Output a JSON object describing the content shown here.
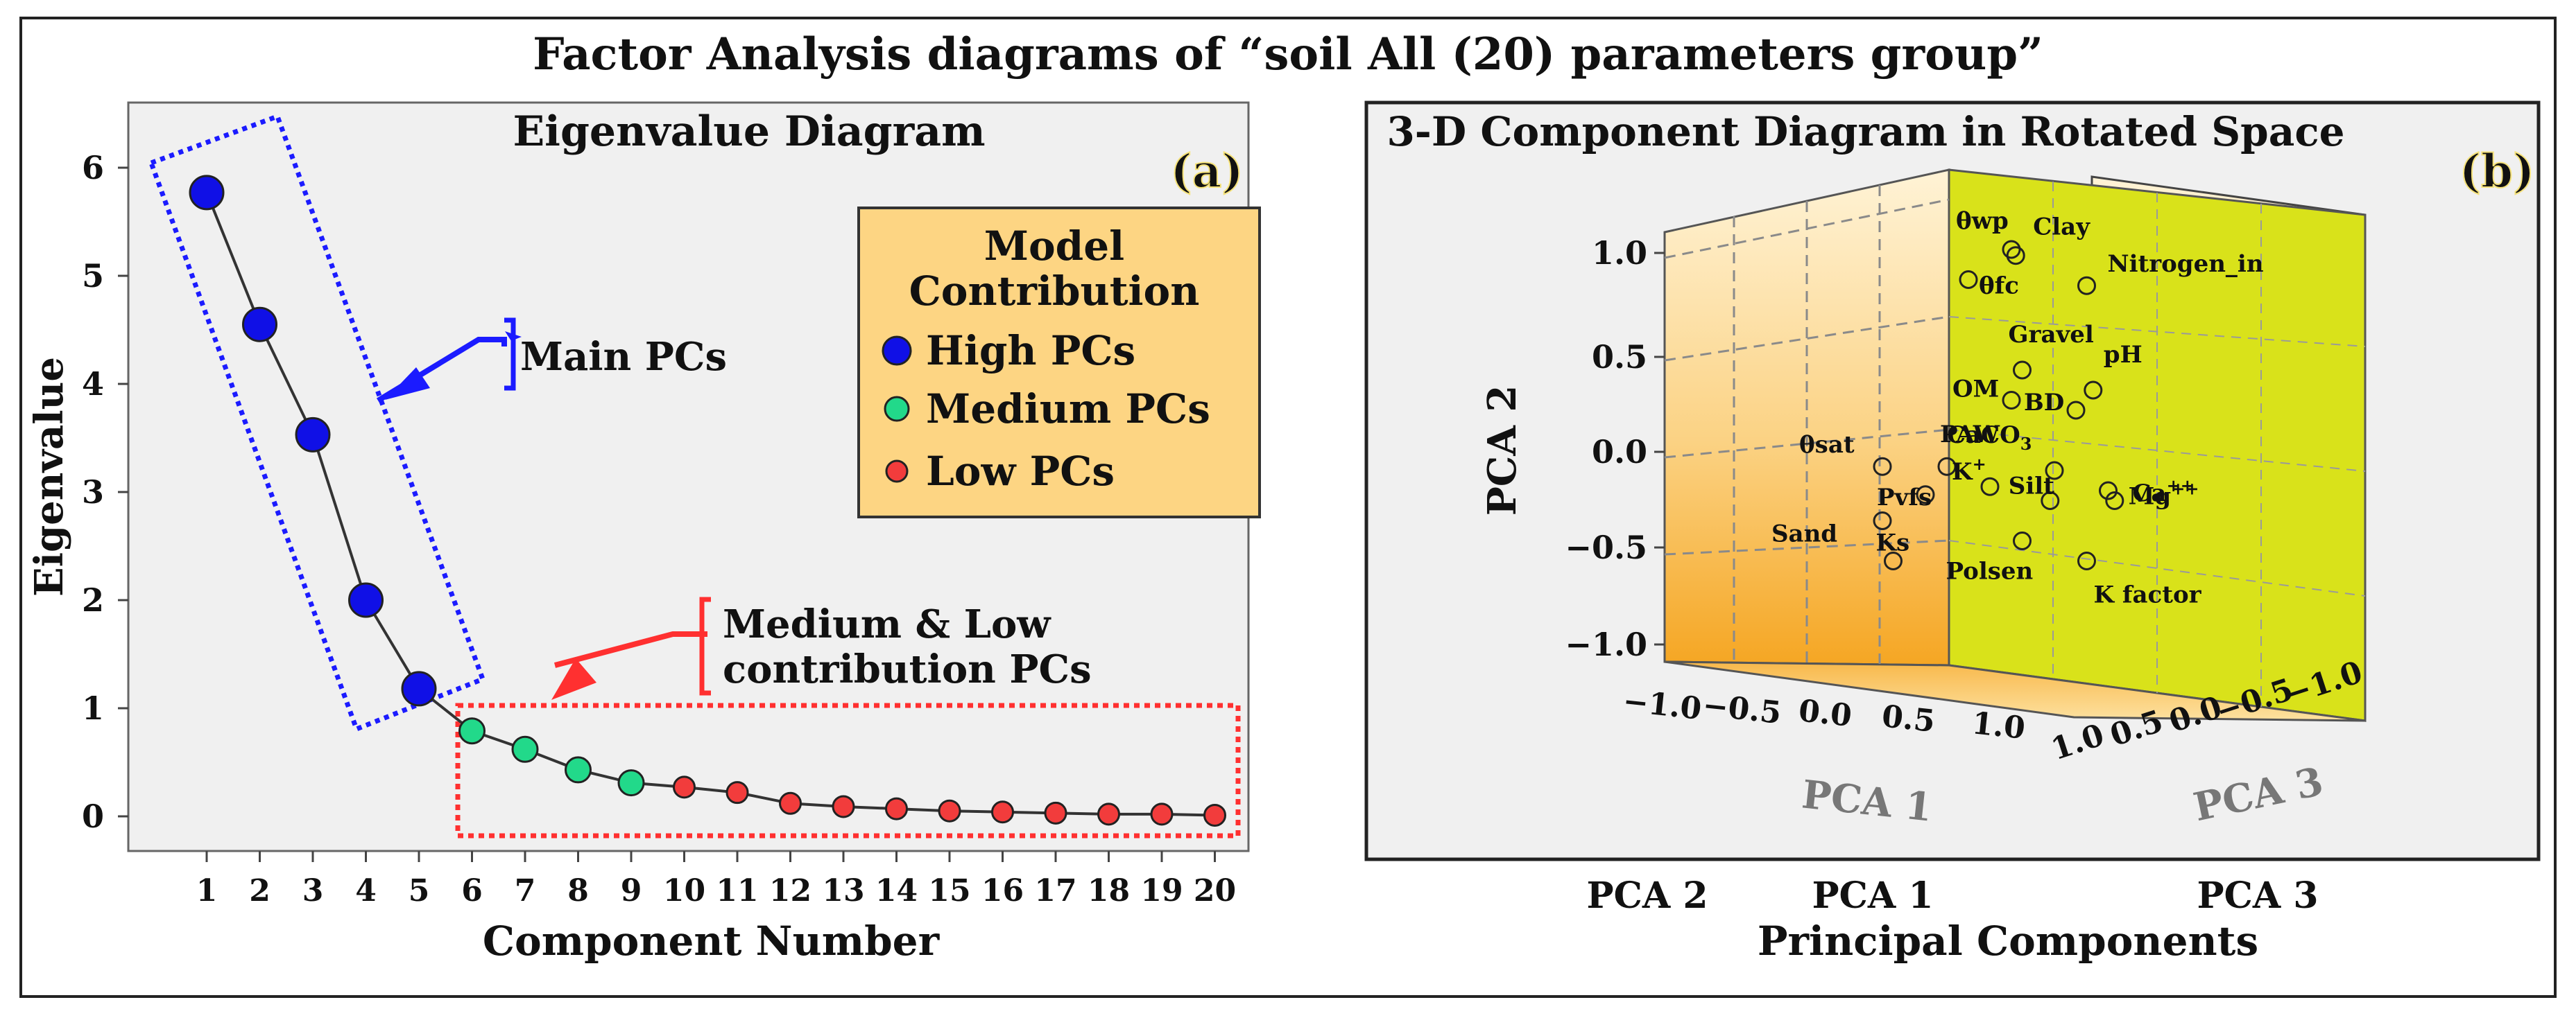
{
  "figure": {
    "title": "Factor Analysis diagrams  of  “soil  All (20) parameters  group”"
  },
  "panel_a": {
    "label": "(a)",
    "legend": {
      "title_line1": "Model",
      "title_line2": "Contribution",
      "high": "High PCs",
      "medium": "Medium PCs",
      "low": "Low PCs"
    },
    "annotation_main": "Main PCs",
    "annotation_medium_line1": "Medium & Low",
    "annotation_medium_line2": "contribution PCs"
  },
  "panel_b": {
    "title": "3-D Component Diagram in Rotated Space",
    "label": "(b)",
    "x_ticks": [
      "−1.0",
      "−0.5",
      "0.0",
      "0.5",
      "1.0"
    ],
    "y_ticks": [
      "1.0",
      "0.5",
      "0.0",
      "−0.5",
      "−1.0"
    ],
    "z_ticks": [
      "1.0",
      "0.5",
      "0.0",
      "−0.5",
      "−1.0"
    ],
    "x_axis": "PCA 1",
    "y_axis": "PCA 2",
    "z_axis": "PCA 3",
    "variables": [
      {
        "text": "θwp"
      },
      {
        "text": "Clay"
      },
      {
        "text": "Nitrogen_in"
      },
      {
        "text": "θfc"
      },
      {
        "text": "Gravel"
      },
      {
        "text": "pH"
      },
      {
        "text": "OM"
      },
      {
        "text": "BD"
      },
      {
        "text": "θsat"
      },
      {
        "text": "PAW"
      },
      {
        "text": "CaCO",
        "sub": "3"
      },
      {
        "text": "Ca",
        "sup": "++"
      },
      {
        "text": "K",
        "sup": "+"
      },
      {
        "text": "Silt"
      },
      {
        "text": "Mg",
        "sup": "++"
      },
      {
        "text": "Sand"
      },
      {
        "text": "Pvfs"
      },
      {
        "text": "Ks"
      },
      {
        "text": "Polsen"
      },
      {
        "text": "K  factor"
      }
    ]
  },
  "bottom_axis": {
    "labels": [
      "PCA 2",
      "PCA 1",
      "PCA 3"
    ],
    "title": "Principal Components"
  },
  "chart_data": [
    {
      "type": "line",
      "title": "Eigenvalue Diagram",
      "xlabel": "Component Number",
      "ylabel": "Eigenvalue",
      "x": [
        1,
        2,
        3,
        4,
        5,
        6,
        7,
        8,
        9,
        10,
        11,
        12,
        13,
        14,
        15,
        16,
        17,
        18,
        19,
        20
      ],
      "values": [
        5.77,
        4.55,
        3.53,
        2.0,
        1.18,
        0.79,
        0.62,
        0.43,
        0.31,
        0.27,
        0.22,
        0.12,
        0.09,
        0.07,
        0.05,
        0.04,
        0.03,
        0.02,
        0.02,
        0.01
      ],
      "categories_by_contribution": [
        "High",
        "High",
        "High",
        "High",
        "High",
        "Medium",
        "Medium",
        "Medium",
        "Medium",
        "Low",
        "Low",
        "Low",
        "Low",
        "Low",
        "Low",
        "Low",
        "Low",
        "Low",
        "Low",
        "Low"
      ],
      "ylim": [
        0,
        6
      ],
      "y_ticks": [
        0,
        1,
        2,
        3,
        4,
        5,
        6
      ],
      "colors": {
        "High": "#1010e6",
        "Medium": "#22d98a",
        "Low": "#f23c3c",
        "line": "#333333"
      }
    },
    {
      "type": "scatter",
      "title": "3-D Component Diagram in Rotated Space",
      "axes": [
        "PCA 1",
        "PCA 2",
        "PCA 3"
      ],
      "xlim": [
        -1,
        1
      ],
      "ylim": [
        -1,
        1
      ],
      "zlim": [
        -1,
        1
      ],
      "points": [
        {
          "name": "θwp",
          "pc1": 0.5,
          "pc2": 1.0
        },
        {
          "name": "Clay",
          "pc1": 0.52,
          "pc2": 0.97
        },
        {
          "name": "Nitrogen_in",
          "pc1": 0.85,
          "pc2": 0.82
        },
        {
          "name": "θfc",
          "pc1": 0.3,
          "pc2": 0.85
        },
        {
          "name": "Gravel",
          "pc1": 0.55,
          "pc2": 0.4
        },
        {
          "name": "pH",
          "pc1": 0.88,
          "pc2": 0.3
        },
        {
          "name": "OM",
          "pc1": 0.5,
          "pc2": 0.25
        },
        {
          "name": "BD",
          "pc1": 0.8,
          "pc2": 0.2
        },
        {
          "name": "θsat",
          "pc1": -0.1,
          "pc2": -0.08
        },
        {
          "name": "PAW",
          "pc1": 0.2,
          "pc2": -0.08
        },
        {
          "name": "CaCO3",
          "pc1": 0.7,
          "pc2": -0.1
        },
        {
          "name": "Ca++",
          "pc1": 0.95,
          "pc2": -0.2
        },
        {
          "name": "K+",
          "pc1": 0.4,
          "pc2": -0.18
        },
        {
          "name": "Silt",
          "pc1": 0.68,
          "pc2": -0.25
        },
        {
          "name": "Mg++",
          "pc1": 0.98,
          "pc2": -0.25
        },
        {
          "name": "Sand",
          "pc1": -0.1,
          "pc2": -0.35
        },
        {
          "name": "Pvfs",
          "pc1": 0.1,
          "pc2": -0.22
        },
        {
          "name": "Ks",
          "pc1": -0.05,
          "pc2": -0.55
        },
        {
          "name": "Polsen",
          "pc1": 0.55,
          "pc2": -0.45
        },
        {
          "name": "K factor",
          "pc1": 0.85,
          "pc2": -0.55
        }
      ]
    }
  ]
}
